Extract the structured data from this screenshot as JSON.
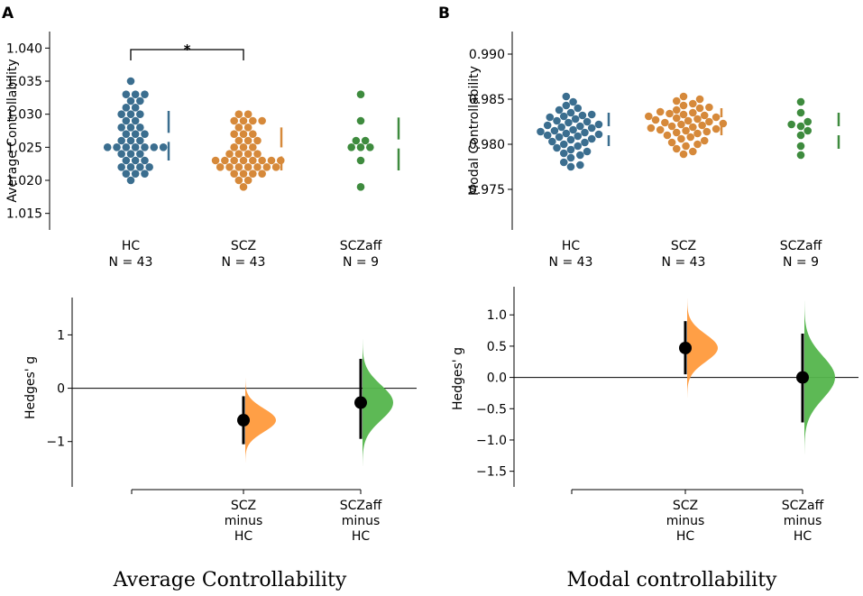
{
  "figure": {
    "panel_letters": [
      "A",
      "B"
    ],
    "captions": [
      "Average Controllability",
      "Modal controllability"
    ]
  },
  "chart_data": [
    {
      "type": "scatter",
      "subtype": "swarm",
      "panel": "A",
      "title": "",
      "xlabel": "",
      "ylabel": "Average Controllability",
      "ylim": [
        1.0125,
        1.0425
      ],
      "yticks": [
        1.015,
        1.02,
        1.025,
        1.03,
        1.035,
        1.04
      ],
      "ytick_labels": [
        "1.015",
        "1.020",
        "1.025",
        "1.030",
        "1.035",
        "1.040"
      ],
      "groups": [
        {
          "name": "HC",
          "n_label": "N = 43",
          "color": "#3b6e8f",
          "values": [
            1.035,
            1.033,
            1.033,
            1.032,
            1.032,
            1.031,
            1.031,
            1.03,
            1.03,
            1.03,
            1.029,
            1.029,
            1.028,
            1.028,
            1.028,
            1.027,
            1.027,
            1.027,
            1.026,
            1.026,
            1.026,
            1.025,
            1.025,
            1.025,
            1.025,
            1.025,
            1.025,
            1.025,
            1.024,
            1.024,
            1.024,
            1.023,
            1.023,
            1.023,
            1.022,
            1.022,
            1.022,
            1.022,
            1.021,
            1.021,
            1.021,
            1.02,
            1.033
          ],
          "sd_bar": {
            "mean": 1.0265,
            "lower": 1.023,
            "upper": 1.0305
          }
        },
        {
          "name": "SCZ",
          "n_label": "N = 43",
          "color": "#d6893a",
          "values": [
            1.03,
            1.03,
            1.029,
            1.029,
            1.029,
            1.029,
            1.028,
            1.028,
            1.027,
            1.027,
            1.027,
            1.026,
            1.026,
            1.026,
            1.025,
            1.025,
            1.025,
            1.024,
            1.024,
            1.024,
            1.024,
            1.023,
            1.023,
            1.023,
            1.023,
            1.023,
            1.023,
            1.023,
            1.023,
            1.022,
            1.022,
            1.022,
            1.022,
            1.022,
            1.022,
            1.022,
            1.021,
            1.021,
            1.021,
            1.021,
            1.02,
            1.02,
            1.019
          ],
          "sd_bar": {
            "mean": 1.0243,
            "lower": 1.0215,
            "upper": 1.028
          }
        },
        {
          "name": "SCZaff",
          "n_label": "N = 9",
          "color": "#3e8b3e",
          "values": [
            1.033,
            1.029,
            1.026,
            1.026,
            1.025,
            1.025,
            1.025,
            1.023,
            1.019
          ],
          "sd_bar": {
            "mean": 1.0255,
            "lower": 1.0215,
            "upper": 1.0295
          }
        }
      ],
      "significance": {
        "from": "HC",
        "to": "SCZ",
        "label": "*"
      }
    },
    {
      "type": "scatter",
      "subtype": "swarm",
      "panel": "B",
      "title": "",
      "xlabel": "",
      "ylabel": "Modal Controllability",
      "ylim": [
        0.9705,
        0.9925
      ],
      "yticks": [
        0.975,
        0.98,
        0.985,
        0.99
      ],
      "ytick_labels": [
        "0.975",
        "0.980",
        "0.985",
        "0.990"
      ],
      "groups": [
        {
          "name": "HC",
          "n_label": "N = 43",
          "color": "#3b6e8f",
          "values": [
            0.9853,
            0.9847,
            0.9843,
            0.984,
            0.9838,
            0.9835,
            0.9833,
            0.9832,
            0.9831,
            0.983,
            0.9828,
            0.9826,
            0.9825,
            0.9824,
            0.9822,
            0.9821,
            0.982,
            0.9819,
            0.9818,
            0.9816,
            0.9815,
            0.9814,
            0.9813,
            0.9812,
            0.9811,
            0.981,
            0.9809,
            0.9808,
            0.9806,
            0.9805,
            0.9803,
            0.9802,
            0.98,
            0.9798,
            0.9796,
            0.9794,
            0.9792,
            0.979,
            0.9788,
            0.9785,
            0.978,
            0.9777,
            0.9775
          ],
          "sd_bar": {
            "mean": 0.9815,
            "lower": 0.9798,
            "upper": 0.9835
          }
        },
        {
          "name": "SCZ",
          "n_label": "N = 43",
          "color": "#d6893a",
          "values": [
            0.9853,
            0.985,
            0.9848,
            0.9845,
            0.9843,
            0.9841,
            0.984,
            0.9838,
            0.9836,
            0.9835,
            0.9834,
            0.9833,
            0.9832,
            0.9831,
            0.983,
            0.9829,
            0.9828,
            0.9827,
            0.9826,
            0.9825,
            0.9824,
            0.9823,
            0.9822,
            0.9821,
            0.982,
            0.9819,
            0.9818,
            0.9817,
            0.9816,
            0.9815,
            0.9814,
            0.9813,
            0.9812,
            0.981,
            0.9808,
            0.9806,
            0.9804,
            0.9802,
            0.98,
            0.9798,
            0.9795,
            0.9792,
            0.9789
          ],
          "sd_bar": {
            "mean": 0.9825,
            "lower": 0.981,
            "upper": 0.984
          }
        },
        {
          "name": "SCZaff",
          "n_label": "N = 9",
          "color": "#3e8b3e",
          "values": [
            0.9847,
            0.9835,
            0.9825,
            0.9822,
            0.982,
            0.9815,
            0.981,
            0.9798,
            0.9788
          ],
          "sd_bar": {
            "mean": 0.9815,
            "lower": 0.9795,
            "upper": 0.9835
          }
        }
      ]
    },
    {
      "type": "scatter",
      "subtype": "effect-size",
      "panel": "A-lower",
      "title": "",
      "ylabel": "Hedges' g",
      "ylim": [
        -1.85,
        1.7
      ],
      "yticks": [
        -1,
        0,
        1
      ],
      "ytick_labels": [
        "−1",
        "0",
        "1"
      ],
      "zero_line": true,
      "comparisons": [
        {
          "label_lines": [
            "SCZ",
            "minus",
            "HC"
          ],
          "estimate": -0.6,
          "ci": [
            -1.05,
            -0.15
          ],
          "color": "#ff9a3c",
          "dist_sd": 0.22
        },
        {
          "label_lines": [
            "SCZaff",
            "minus",
            "HC"
          ],
          "estimate": -0.27,
          "ci": [
            -0.95,
            0.55
          ],
          "color": "#54b54c",
          "dist_sd": 0.33
        }
      ]
    },
    {
      "type": "scatter",
      "subtype": "effect-size",
      "panel": "B-lower",
      "title": "",
      "ylabel": "Hedges' g",
      "ylim": [
        -1.75,
        1.45
      ],
      "yticks": [
        -1.5,
        -1.0,
        -0.5,
        0.0,
        0.5,
        1.0
      ],
      "ytick_labels": [
        "−1.5",
        "−1.0",
        "−0.5",
        "0.0",
        "0.5",
        "1.0"
      ],
      "zero_line": true,
      "comparisons": [
        {
          "label_lines": [
            "SCZ",
            "minus",
            "HC"
          ],
          "estimate": 0.47,
          "ci": [
            0.05,
            0.9
          ],
          "color": "#ff9a3c",
          "dist_sd": 0.22
        },
        {
          "label_lines": [
            "SCZaff",
            "minus",
            "HC"
          ],
          "estimate": 0.0,
          "ci": [
            -0.72,
            0.7
          ],
          "color": "#54b54c",
          "dist_sd": 0.34
        }
      ]
    }
  ]
}
